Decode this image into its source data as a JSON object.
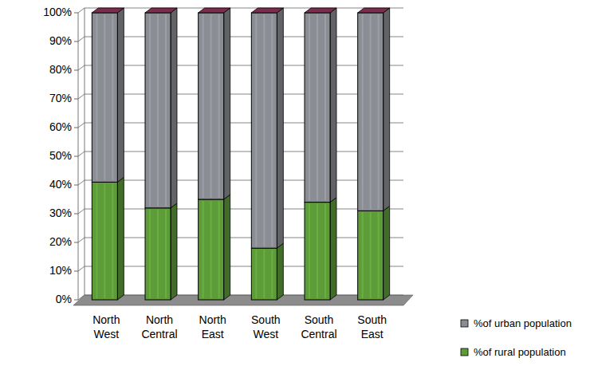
{
  "chart_data": {
    "type": "bar",
    "stacked": true,
    "grid": true,
    "legend": "bottom-right",
    "categories": [
      "North West",
      "North Central",
      "North East",
      "South West",
      "South Central",
      "South East"
    ],
    "series": [
      {
        "name": "%of rural population",
        "color": "#5e9c3a",
        "values": [
          41,
          32,
          35,
          18,
          34,
          31
        ]
      },
      {
        "name": "%of urban population",
        "color": "#8a8d93",
        "values": [
          59,
          68,
          65,
          82,
          66,
          69
        ]
      }
    ],
    "ylim": [
      0,
      100
    ],
    "yticks": [
      {
        "value": 0,
        "label": "0%"
      },
      {
        "value": 10,
        "label": "10%"
      },
      {
        "value": 20,
        "label": "20%"
      },
      {
        "value": 30,
        "label": "30%"
      },
      {
        "value": 40,
        "label": "40%"
      },
      {
        "value": 50,
        "label": "50%"
      },
      {
        "value": 60,
        "label": "60%"
      },
      {
        "value": 70,
        "label": "70%"
      },
      {
        "value": 80,
        "label": "80%"
      },
      {
        "value": 90,
        "label": "90%"
      },
      {
        "value": 100,
        "label": "100%"
      }
    ]
  }
}
